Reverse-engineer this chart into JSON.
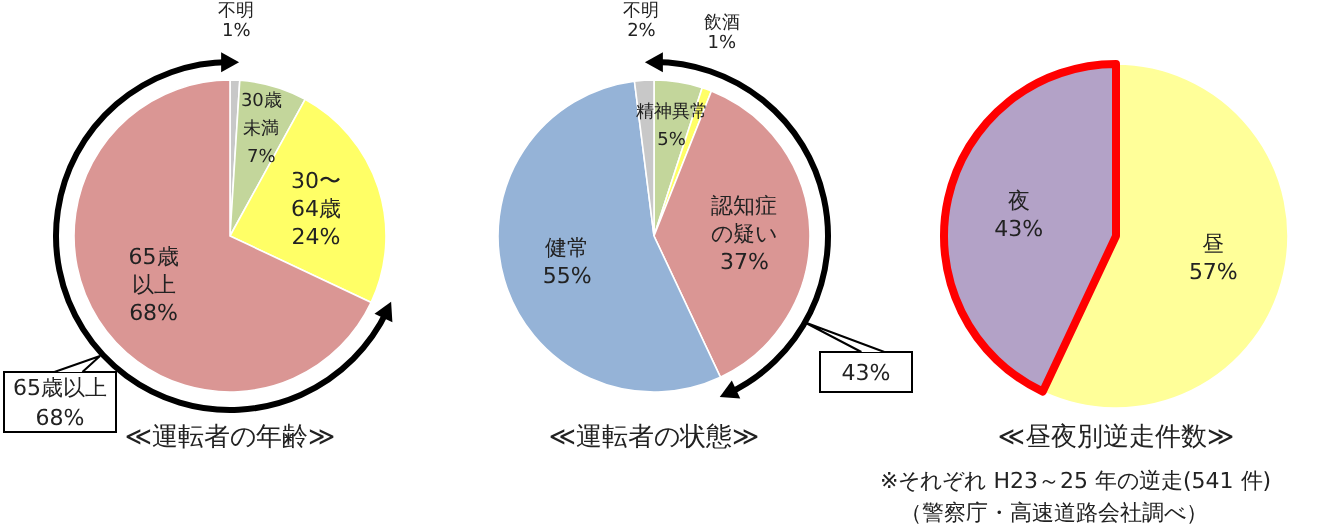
{
  "chart_data": [
    {
      "type": "pie",
      "title": "≪運転者の年齢≫",
      "categories": [
        "不明",
        "30歳未満",
        "30〜64歳",
        "65歳以上"
      ],
      "values": [
        1,
        7,
        24,
        68
      ],
      "value_labels": [
        "1%",
        "7%",
        "24%",
        "68%"
      ],
      "colors": [
        "#c8c8c8",
        "#c3d69b",
        "#ffff66",
        "#da9694"
      ],
      "annotations": [
        "65歳以上\n68%"
      ]
    },
    {
      "type": "pie",
      "title": "≪運転者の状態≫",
      "categories": [
        "精神異常",
        "飲酒",
        "認知症の疑い",
        "健常",
        "不明"
      ],
      "values": [
        5,
        1,
        37,
        55,
        2
      ],
      "value_labels": [
        "5%",
        "1%",
        "37%",
        "55%",
        "2%"
      ],
      "colors": [
        "#c3d69b",
        "#ffff66",
        "#da9694",
        "#95b3d7",
        "#c8c8c8"
      ],
      "annotations": [
        "43%"
      ]
    },
    {
      "type": "pie",
      "title": "≪昼夜別逆走件数≫",
      "categories": [
        "昼",
        "夜"
      ],
      "values": [
        57,
        43
      ],
      "value_labels": [
        "57%",
        "43%"
      ],
      "colors": [
        "#ffff99",
        "#b3a2c7"
      ],
      "annotations": [
        "※それぞれ H23～25 年の逆走(541 件)",
        "（警察庁・高速道路会社調べ）"
      ]
    }
  ]
}
